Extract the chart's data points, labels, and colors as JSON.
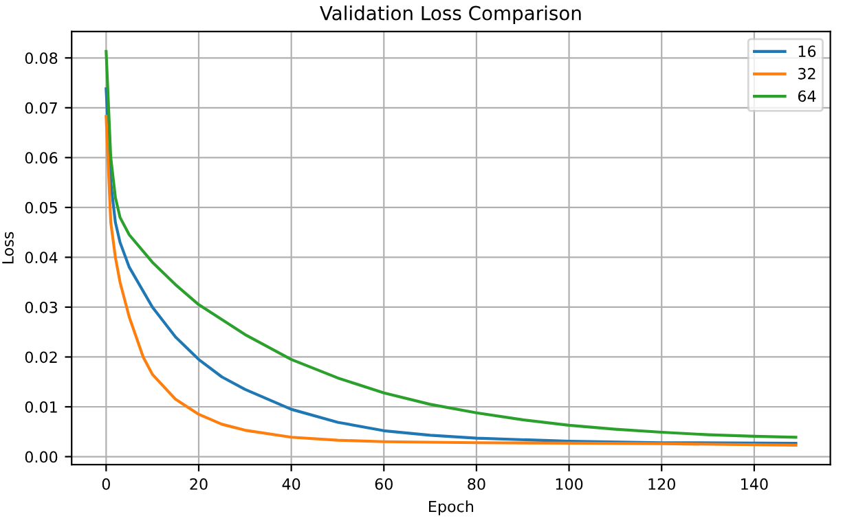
{
  "chart_data": {
    "type": "line",
    "title": "Validation Loss Comparison",
    "xlabel": "Epoch",
    "ylabel": "Loss",
    "xlim": [
      -7.45,
      156.45
    ],
    "ylim": [
      -0.0016,
      0.0853
    ],
    "xticks": [
      0,
      20,
      40,
      60,
      80,
      100,
      120,
      140
    ],
    "yticks": [
      {
        "value": 0,
        "label": "0.00"
      },
      {
        "value": 0.01,
        "label": "0.01"
      },
      {
        "value": 0.02,
        "label": "0.02"
      },
      {
        "value": 0.03,
        "label": "0.03"
      },
      {
        "value": 0.04,
        "label": "0.04"
      },
      {
        "value": 0.05,
        "label": "0.05"
      },
      {
        "value": 0.06,
        "label": "0.06"
      },
      {
        "value": 0.07,
        "label": "0.07"
      },
      {
        "value": 0.08,
        "label": "0.08"
      }
    ],
    "grid": true,
    "legend": "top right",
    "series": [
      {
        "name": "16",
        "color": "#1f77b4",
        "x": [
          0,
          1,
          2,
          3,
          5,
          10,
          15,
          20,
          25,
          30,
          40,
          50,
          60,
          70,
          80,
          100,
          120,
          149
        ],
        "values": [
          0.0738,
          0.055,
          0.047,
          0.043,
          0.038,
          0.03,
          0.024,
          0.0195,
          0.016,
          0.0135,
          0.0095,
          0.0069,
          0.0052,
          0.0043,
          0.0037,
          0.0031,
          0.0028,
          0.0027
        ]
      },
      {
        "name": "32",
        "color": "#ff7f0e",
        "x": [
          0,
          1,
          2,
          3,
          5,
          8,
          10,
          15,
          20,
          25,
          30,
          40,
          50,
          60,
          80,
          100,
          120,
          149
        ],
        "values": [
          0.0683,
          0.047,
          0.04,
          0.035,
          0.028,
          0.02,
          0.0165,
          0.0115,
          0.0085,
          0.0065,
          0.0053,
          0.0039,
          0.0033,
          0.003,
          0.0028,
          0.0027,
          0.0026,
          0.0023
        ]
      },
      {
        "name": "64",
        "color": "#2ca02c",
        "x": [
          0,
          1,
          2,
          3,
          5,
          10,
          15,
          20,
          30,
          40,
          50,
          60,
          70,
          80,
          90,
          100,
          110,
          120,
          130,
          140,
          149
        ],
        "values": [
          0.0813,
          0.06,
          0.052,
          0.048,
          0.0445,
          0.039,
          0.0345,
          0.0305,
          0.0245,
          0.0195,
          0.0158,
          0.0128,
          0.0105,
          0.0088,
          0.0074,
          0.0063,
          0.0055,
          0.0049,
          0.0044,
          0.0041,
          0.0039
        ]
      }
    ]
  }
}
